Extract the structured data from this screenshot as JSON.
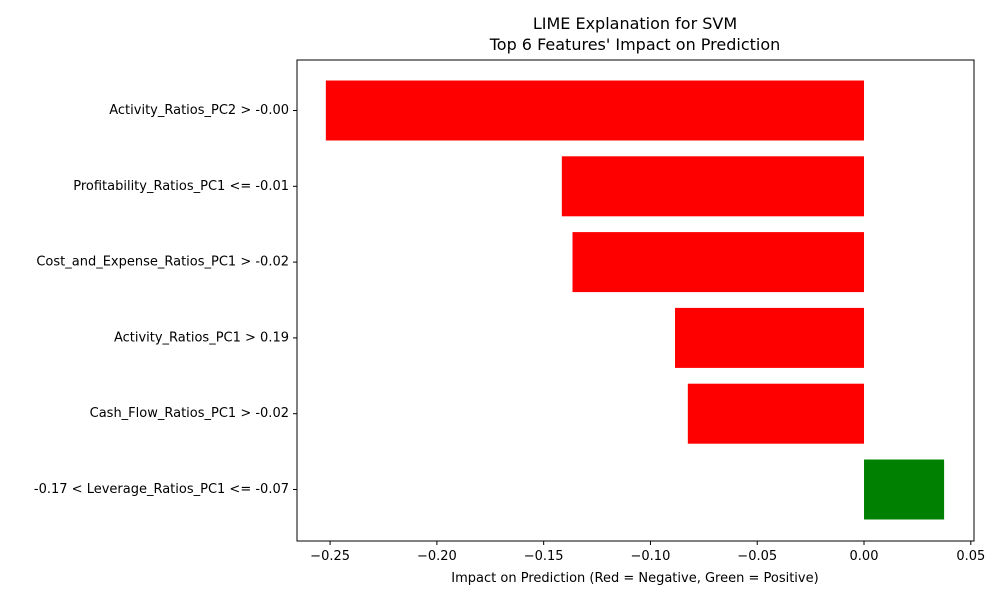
{
  "chart_data": {
    "type": "bar",
    "orientation": "horizontal",
    "title": "LIME Explanation for SVM",
    "subtitle": "Top 6 Features' Impact on Prediction",
    "xlabel": "Impact on Prediction (Red = Negative, Green = Positive)",
    "ylabel": "",
    "xlim": [
      -0.2655,
      0.0515
    ],
    "xticks": [
      -0.25,
      -0.2,
      -0.15,
      -0.1,
      -0.05,
      0.0,
      0.05
    ],
    "xtick_labels": [
      "−0.25",
      "−0.20",
      "−0.15",
      "−0.10",
      "−0.05",
      "0.00",
      "0.05"
    ],
    "grid": false,
    "legend": "none",
    "categories": [
      "Activity_Ratios_PC2 > -0.00",
      "Profitability_Ratios_PC1 <= -0.01",
      "Cost_and_Expense_Ratios_PC1 > -0.02",
      "Activity_Ratios_PC1 > 0.19",
      "Cash_Flow_Ratios_PC1 > -0.02",
      "-0.17 < Leverage_Ratios_PC1 <= -0.07"
    ],
    "values": [
      -0.252,
      -0.1415,
      -0.1365,
      -0.0885,
      -0.0825,
      0.0375
    ],
    "colors": {
      "negative": "#ff0000",
      "positive": "#008000"
    }
  }
}
